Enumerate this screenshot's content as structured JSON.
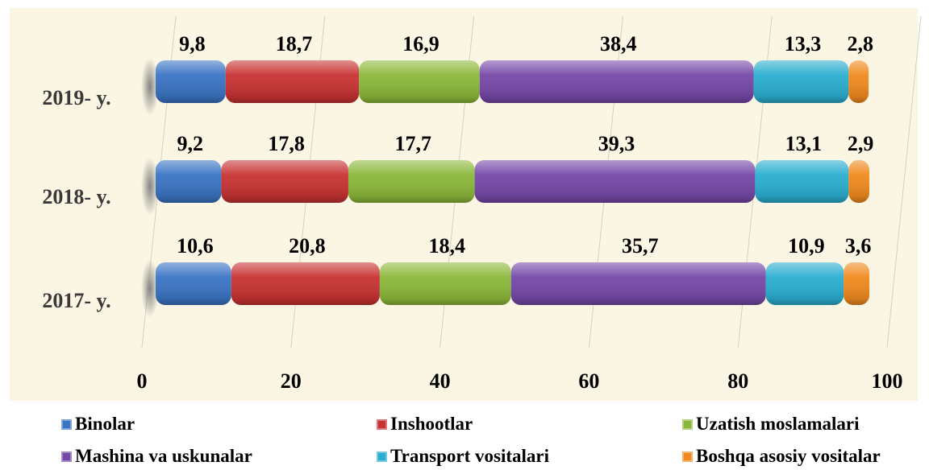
{
  "chart_data": {
    "type": "bar",
    "orientation": "horizontal",
    "stacked": true,
    "categories": [
      "2019- y.",
      "2018- y.",
      "2017- y."
    ],
    "series": [
      {
        "name": "Binolar",
        "color": "#3a74c4",
        "values": [
          9.8,
          9.2,
          10.6
        ],
        "labels": [
          "9,8",
          "9,2",
          "10,6"
        ]
      },
      {
        "name": "Inshootlar",
        "color": "#c83232",
        "values": [
          18.7,
          17.8,
          20.8
        ],
        "labels": [
          "18,7",
          "17,8",
          "20,8"
        ]
      },
      {
        "name": "Uzatish moslamalari",
        "color": "#8cb83a",
        "values": [
          16.9,
          17.7,
          18.4
        ],
        "labels": [
          "16,9",
          "17,7",
          "18,4"
        ]
      },
      {
        "name": "Mashina va uskunalar",
        "color": "#7548a8",
        "values": [
          38.4,
          39.3,
          35.7
        ],
        "labels": [
          "38,4",
          "39,3",
          "35,7"
        ]
      },
      {
        "name": "Transport vositalari",
        "color": "#2aaed0",
        "values": [
          13.3,
          13.1,
          10.9
        ],
        "labels": [
          "13,3",
          "13,1",
          "10,9"
        ]
      },
      {
        "name": "Boshqa asosiy vositalar",
        "color": "#f08a1e",
        "values": [
          2.8,
          2.9,
          3.6
        ],
        "labels": [
          "2,8",
          "2,9",
          "3,6"
        ]
      }
    ],
    "xlim": [
      0,
      100
    ],
    "xticks": [
      "0",
      "20",
      "40",
      "60",
      "80",
      "100"
    ],
    "grid": true,
    "legend_position": "bottom",
    "title": "",
    "xlabel": "",
    "ylabel": ""
  }
}
